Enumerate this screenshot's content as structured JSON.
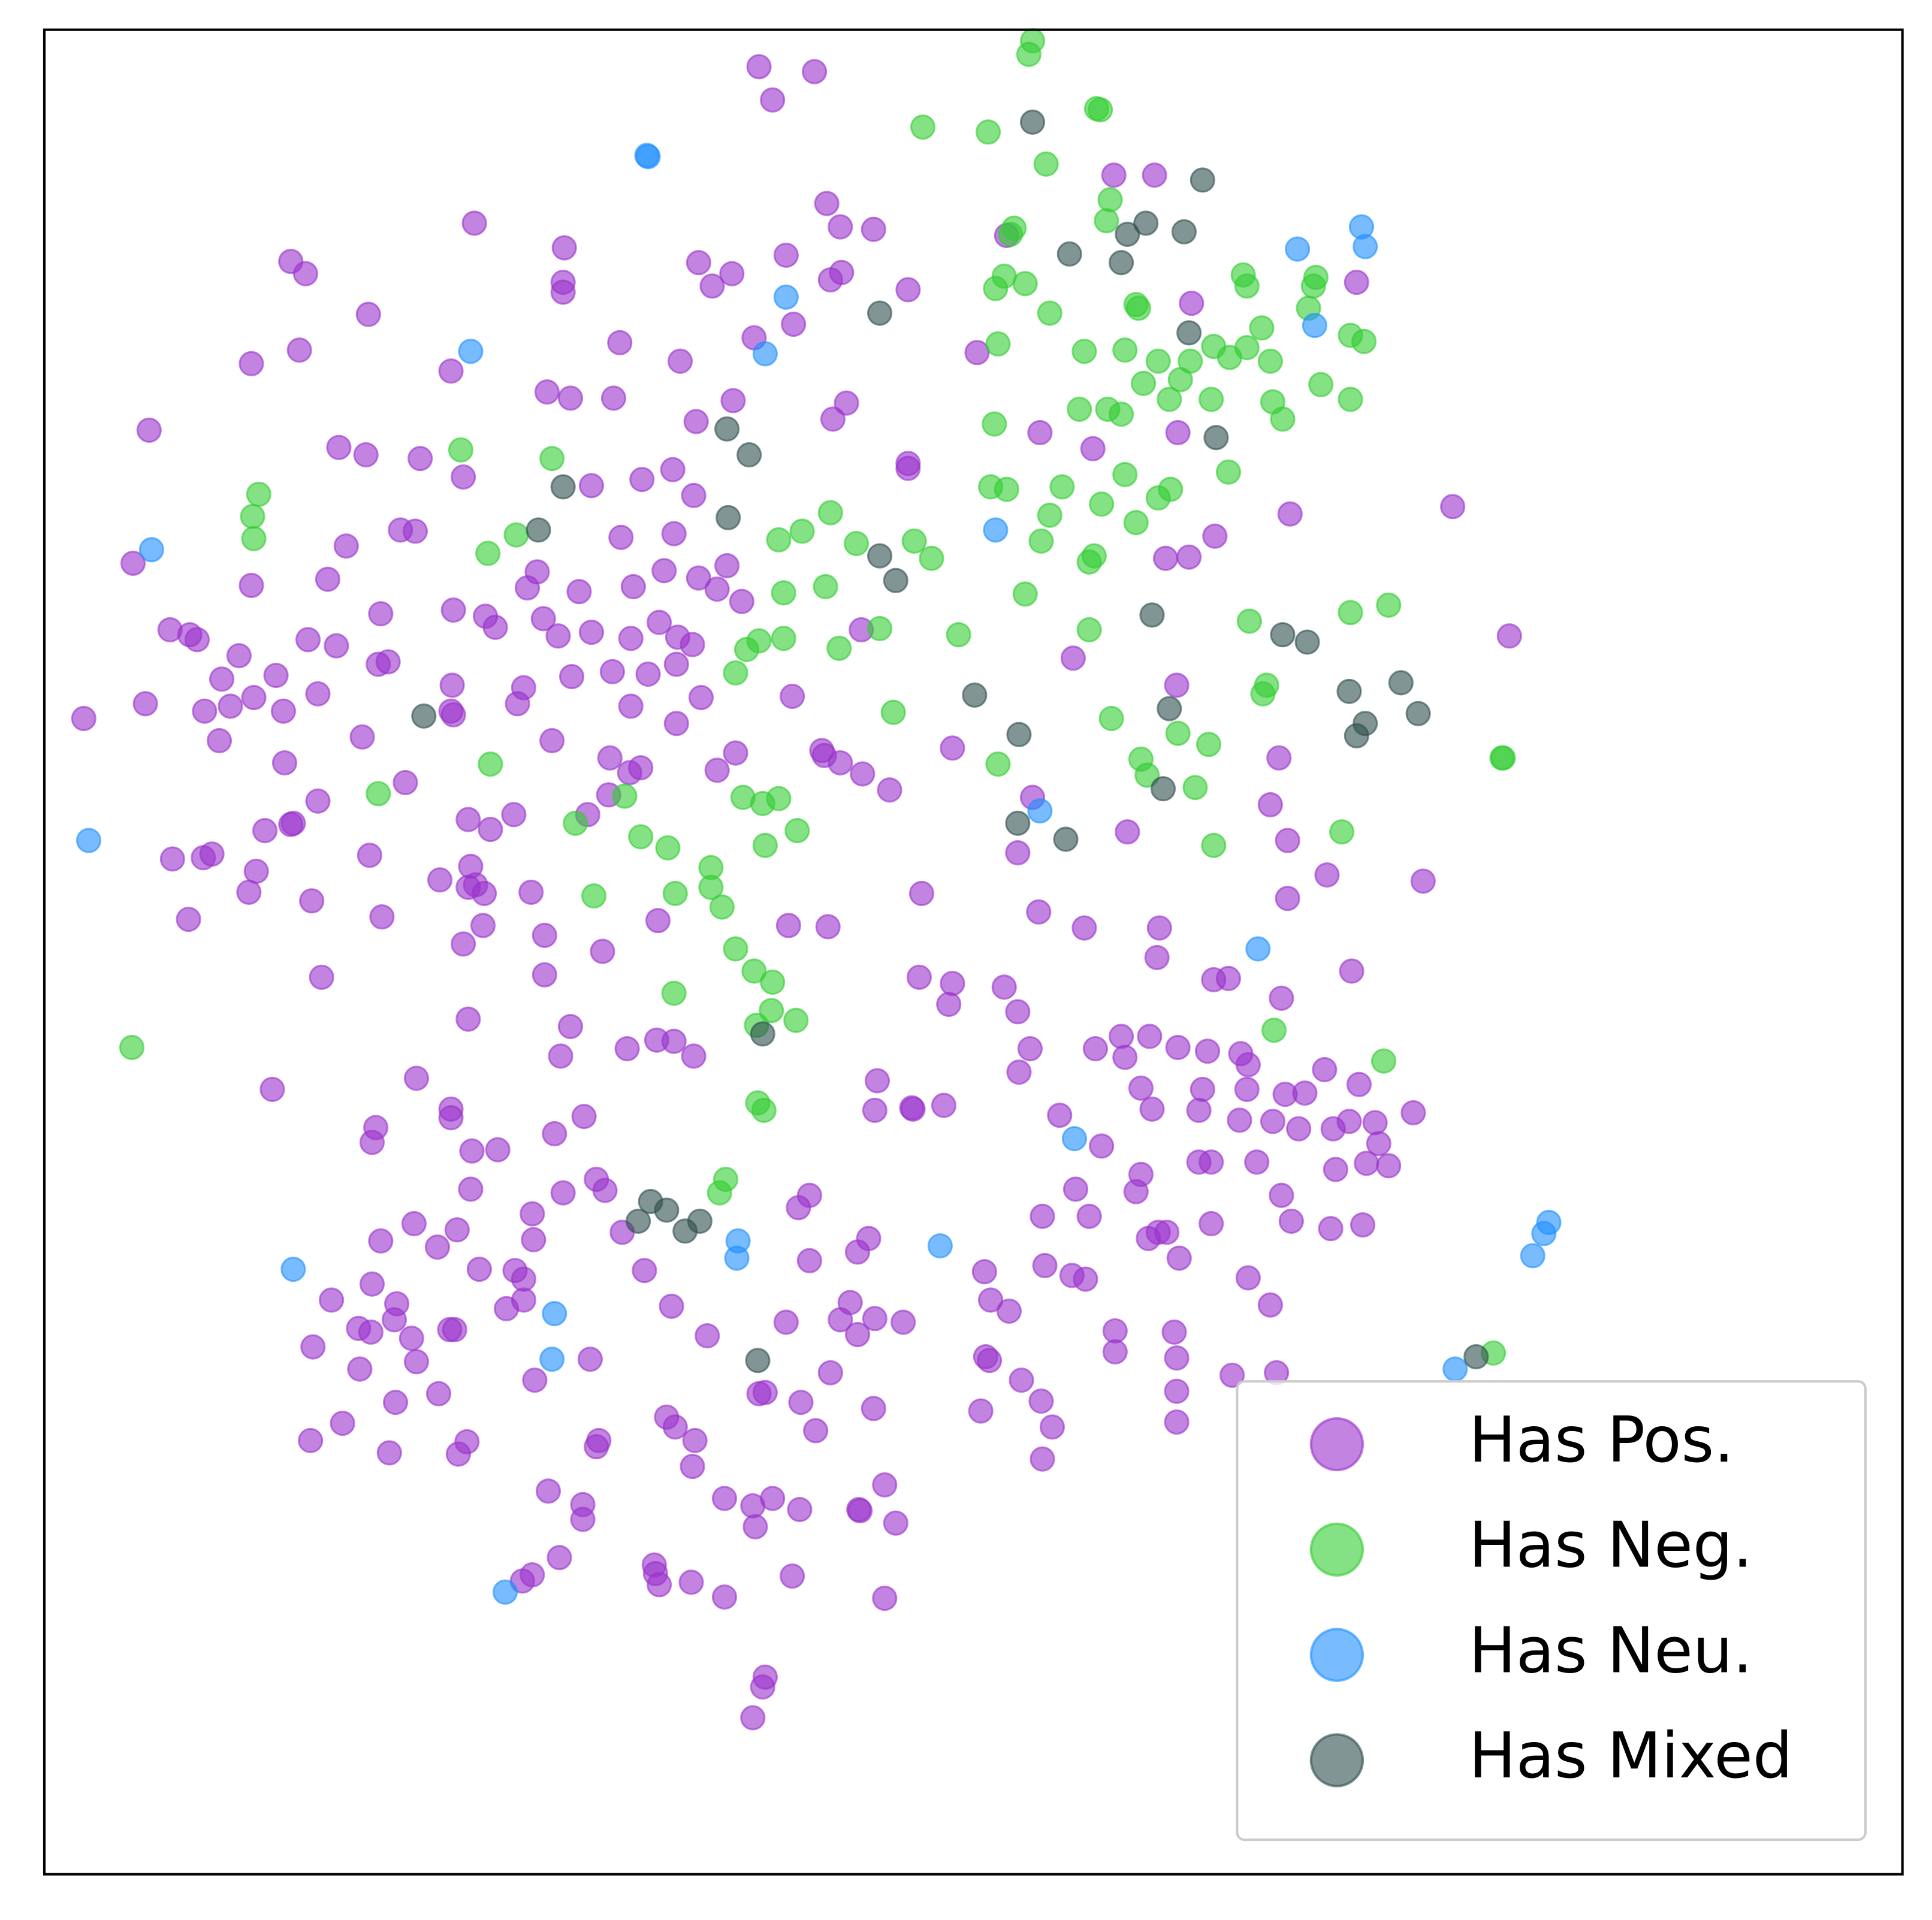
{
  "chart_data": {
    "type": "scatter",
    "xlim": [
      36,
      1544
    ],
    "ylim": [
      1521,
      24
    ],
    "legend": "lower right",
    "alpha": 0.6,
    "series": [
      {
        "name": "Has Pos.",
        "color": "#9932cc",
        "x": [
          616,
          661,
          627,
          385,
          236,
          248,
          458,
          457,
          457,
          299,
          204,
          243,
          366,
          121,
          275,
          297,
          341,
          376,
          444,
          463,
          498,
          503,
          552,
          567,
          594,
          578,
          638,
          671,
          682,
          709,
          683,
          674,
          737,
          612,
          644,
          595,
          565,
          521,
          546,
          563,
          480,
          504,
          547,
          590,
          567,
          539,
          514,
          470,
          436,
          428,
          441,
          453,
          480,
          512,
          535,
          550,
          562,
          582,
          602,
          368,
          394,
          402,
          325,
          337,
          281,
          266,
          204,
          108,
          138,
          154,
          160,
          194,
          180,
          166,
          187,
          206,
          224,
          230,
          258,
          250,
          273,
          309,
          307,
          315,
          118,
          68,
          178,
          231,
          258,
          294,
          329,
          367,
          368,
          366,
          420,
          425,
          464,
          497,
          512,
          526,
          549,
          549,
          569,
          643,
          448,
          495,
          511,
          520,
          494,
          477,
          582,
          597,
          667,
          669,
          682,
          700,
          722,
          773,
          699,
          238,
          215,
          236,
          140,
          165,
          172,
          208,
          202,
          153,
          253,
          300,
          310,
          380,
          398,
          417,
          357,
          382,
          386,
          393,
          380,
          431,
          392,
          376,
          442,
          442,
          489,
          534,
          261,
          380,
          463,
          455,
          509,
          533,
          547,
          563,
          640,
          672,
          748,
          737,
          737,
          676,
          687,
          793,
          817,
          904,
          937,
          967,
          956,
          887,
          844,
          986,
          946,
          965,
          1047,
          1101,
          1179,
          1225,
          871,
          955,
          1038,
          1031,
          1045,
          1077,
          1045,
          1155,
          915,
          838,
          826,
          843,
          880,
          941,
          939,
          1097,
          1040,
          985,
          997,
          815,
          826,
          773,
          770,
          746,
          836,
          827,
          889,
          910,
          933,
          913,
          956,
          980,
          1007,
          1013,
          1075,
          1103,
          1043,
          1059,
          1012,
          926,
          935,
          860,
          976,
          973,
          1006,
          1033,
          1054,
          1082,
          1095,
          1116,
          1147,
          1119,
          973,
          983,
          1020,
          1084,
          1109,
          1127,
          894,
          926,
          922,
          873,
          884,
          846,
          940,
          947,
          957,
          983,
          932,
          1040,
          1048,
          1080,
          1106,
          1013,
          1031,
          848,
          870,
          881,
          799,
          804,
          819,
          905,
          905,
          953,
          955,
          955,
          955,
          1000,
          1036,
          800,
          803,
          829,
          845,
          854,
          796,
          846,
          712,
          710,
          741,
          766,
          740,
          710,
          733,
          690,
          682,
          696,
          638,
          657,
          696,
          705,
          648,
          657,
          674,
          650,
          662,
          709,
          718,
          727,
          698,
          697,
          649,
          627,
          611,
          613,
          588,
          616,
          621,
          574,
          545,
          523,
          505,
          484,
          491,
          457,
          474,
          450,
          432,
          433,
          434,
          418,
          425,
          411,
          425,
          389,
          382,
          404,
          383,
          366,
          366,
          338,
          305,
          302,
          221,
          309,
          336,
          355,
          371,
          302,
          322,
          320,
          269,
          291,
          301,
          334,
          338,
          365,
          369,
          292,
          254,
          321,
          356,
          278,
          252,
          316,
          379,
          372,
          479,
          541,
          548,
          564,
          486,
          484,
          562,
          445,
          473,
          473,
          454,
          432,
          424,
          531,
          535,
          532,
          561,
          588,
          643,
          718,
          621,
          619,
          611
        ],
        "values": [
          54,
          58,
          81,
          181,
          212,
          222,
          201,
          229,
          237,
          255,
          295,
          284,
          301,
          349,
          363,
          369,
          372,
          387,
          318,
          323,
          323,
          278,
          293,
          213,
          222,
          232,
          207,
          165,
          184,
          186,
          221,
          227,
          235,
          274,
          263,
          325,
          342,
          389,
          381,
          402,
          394,
          436,
          433,
          459,
          469,
          463,
          476,
          480,
          464,
          477,
          502,
          516,
          513,
          518,
          505,
          517,
          523,
          478,
          488,
          495,
          500,
          509,
          430,
          431,
          443,
          470,
          475,
          457,
          511,
          515,
          519,
          532,
          551,
          577,
          573,
          566,
          548,
          577,
          563,
          519,
          524,
          498,
          539,
          537,
          571,
          583,
          601,
          619,
          650,
          598,
          635,
          556,
          580,
          577,
          571,
          558,
          549,
          545,
          573,
          547,
          539,
          587,
          566,
          565,
          601,
          615,
          627,
          623,
          645,
          661,
          625,
          611,
          609,
          613,
          619,
          628,
          641,
          607,
          511,
          668,
          674,
          669,
          697,
          696,
          693,
          707,
          724,
          746,
          731,
          694,
          744,
          665,
          673,
          661,
          714,
          703,
          718,
          725,
          720,
          724,
          751,
          766,
          759,
          791,
          772,
          747,
          793,
          827,
          833,
          857,
          851,
          844,
          845,
          857,
          751,
          752,
          725,
          376,
          380,
          340,
          327,
          286,
          191,
          142,
          142,
          246,
          351,
          364,
          351,
          435,
          453,
          452,
          417,
          229,
          411,
          516,
          534,
          556,
          615,
          653,
          682,
          710,
          729,
          715,
          675,
          647,
          692,
          740,
          753,
          753,
          777,
          788,
          810,
          795,
          794,
          801,
          821,
          798,
          815,
          793,
          851,
          870,
          851,
          841,
          841,
          858,
          850,
          853,
          855,
          864,
          868,
          880,
          888,
          887,
          884,
          883,
          900,
          905,
          884,
          901,
          909,
          910,
          916,
          916,
          910,
          911,
          903,
          928,
          943,
          943,
          943,
          949,
          944,
          946,
          930,
          953,
          967,
          965,
          987,
          987,
          1000,
          1000,
          1021,
          993,
          1005,
          970,
          991,
          997,
          994,
          1037,
          1059,
          1027,
          1035,
          1038,
          1032,
          1055,
          1064,
          1080,
          1097,
          1081,
          1102,
          1129,
          1154,
          1116,
          1114,
          1101,
          1104,
          1120,
          1137,
          1158,
          1145,
          1184,
          877,
          901,
          900,
          897,
          899,
          1070,
          1073,
          1057,
          1071,
          1083,
          1073,
          1023,
          1016,
          1005,
          980,
          970,
          1114,
          1138,
          1161,
          1143,
          1205,
          1236,
          1226,
          1225,
          1225,
          1216,
          1222,
          1239,
          1216,
          1131,
          1130,
          1084,
          1060,
          1031,
          1000,
          957,
          966,
          968,
          906,
          920,
          985,
          1006,
          1120,
          1031,
          1038,
          1062,
          1055,
          1030,
          965,
          933,
          934,
          900,
          907,
          875,
          915,
          927,
          884,
          1007,
          993,
          1012,
          998,
          1042,
          1058,
          1071,
          1055,
          1078,
          1081,
          1086,
          1105,
          1079,
          1079,
          1111,
          1093,
          1138,
          1131,
          1155,
          1169,
          1179,
          1170,
          1180,
          1103,
          1150,
          1158,
          1169,
          1169,
          1174,
          1190,
          1210,
          1221,
          1233,
          1264,
          1278,
          1283,
          1270,
          1286,
          1277,
          1284,
          1296,
          1279,
          1297,
          1361,
          1369,
          1394
        ]
      },
      {
        "name": "Has Neg.",
        "color": "#32cd32",
        "x": [
          838,
          835,
          749,
          802,
          890,
          893,
          849,
          901,
          898,
          823,
          820,
          815,
          808,
          832,
          852,
          810,
          880,
          913,
          922,
          924,
          940,
          928,
          949,
          958,
          966,
          985,
          998,
          1012,
          1024,
          1031,
          1009,
          1012,
          1068,
          1066,
          1062,
          1096,
          1107,
          1072,
          1096,
          1033,
          1041,
          983,
          910,
          899,
          876,
          807,
          862,
          852,
          894,
          913,
          940,
          950,
          997,
          922,
          845,
          888,
          884,
          804,
          817,
          832,
          884,
          902,
          926,
          931,
          956,
          970,
          981,
          985,
          1028,
          1025,
          1014,
          1096,
          1127,
          1219,
          1220,
          1089,
          1034,
          1123,
          1212,
          810,
          778,
          725,
          742,
          756,
          714,
          695,
          674,
          651,
          632,
          670,
          636,
          681,
          636,
          616,
          606,
          597,
          603,
          619,
          632,
          647,
          621,
          577,
          577,
          586,
          548,
          542,
          520,
          467,
          482,
          507,
          597,
          612,
          627,
          626,
          646,
          614,
          547,
          615,
          620,
          589,
          584,
          374,
          448,
          419,
          396,
          210,
          205,
          206,
          398,
          307,
          107
        ],
        "values": [
          33,
          44,
          103,
          107,
          88,
          89,
          133,
          162,
          179,
          185,
          190,
          224,
          234,
          230,
          254,
          279,
          285,
          284,
          247,
          250,
          293,
          311,
          324,
          308,
          293,
          281,
          290,
          282,
          266,
          293,
          223,
          232,
          225,
          232,
          250,
          272,
          277,
          312,
          324,
          326,
          340,
          324,
          336,
          332,
          332,
          344,
          395,
          418,
          409,
          385,
          404,
          397,
          383,
          424,
          439,
          451,
          456,
          395,
          397,
          482,
          511,
          583,
          616,
          629,
          595,
          639,
          604,
          686,
          556,
          563,
          504,
          497,
          491,
          615,
          615,
          675,
          836,
          861,
          1098,
          620,
          515,
          578,
          439,
          453,
          510,
          441,
          416,
          431,
          438,
          476,
          481,
          526,
          518,
          520,
          527,
          546,
          647,
          652,
          648,
          674,
          686,
          704,
          720,
          736,
          725,
          688,
          679,
          668,
          727,
          646,
          770,
          788,
          797,
          820,
          828,
          832,
          806,
          895,
          901,
          957,
          968,
          365,
          372,
          434,
          449,
          401,
          419,
          437,
          620,
          644,
          850
        ]
      },
      {
        "name": "Has Neu.",
        "color": "#1e90ff",
        "x": [
          526,
          525,
          638,
          621,
          382,
          123,
          72,
          1053,
          1105,
          1108,
          1067,
          808,
          844,
          1021,
          872,
          763,
          599,
          598,
          450,
          448,
          238,
          410,
          1181,
          1244,
          1253,
          1257
        ],
        "values": [
          127,
          126,
          241,
          287,
          285,
          446,
          682,
          202,
          184,
          200,
          264,
          430,
          658,
          770,
          924,
          1011,
          1007,
          1021,
          1066,
          1103,
          1030,
          1292,
          1111,
          1019,
          1001,
          992
        ]
      },
      {
        "name": "Has Mixed",
        "color": "#2f4f4f",
        "x": [
          838,
          976,
          930,
          915,
          961,
          868,
          910,
          714,
          965,
          987,
          590,
          608,
          457,
          437,
          591,
          714,
          727,
          935,
          1041,
          1061,
          791,
          949,
          1095,
          1137,
          1151,
          1108,
          1101,
          827,
          944,
          826,
          865,
          344,
          619,
          528,
          541,
          518,
          556,
          568,
          615,
          1198
        ],
        "values": [
          99,
          146,
          181,
          190,
          188,
          206,
          213,
          254,
          270,
          355,
          348,
          369,
          395,
          430,
          420,
          451,
          471,
          499,
          515,
          521,
          564,
          575,
          561,
          554,
          579,
          587,
          597,
          596,
          640,
          668,
          681,
          581,
          839,
          975,
          982,
          991,
          999,
          991,
          1104,
          1101
        ]
      }
    ]
  }
}
